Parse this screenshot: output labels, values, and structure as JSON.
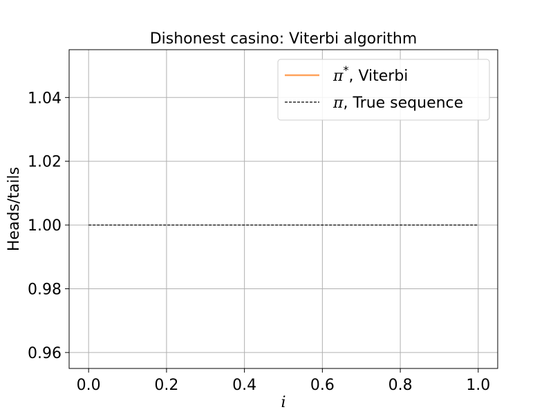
{
  "chart_data": {
    "type": "line",
    "title": "Dishonest casino: Viterbi algorithm",
    "xlabel": "i",
    "ylabel": "Heads/tails",
    "xlim": [
      -0.05,
      1.05
    ],
    "ylim": [
      0.955,
      1.055
    ],
    "xticks": [
      0.0,
      0.2,
      0.4,
      0.6,
      0.8,
      1.0
    ],
    "xtick_labels": [
      "0.0",
      "0.2",
      "0.4",
      "0.6",
      "0.8",
      "1.0"
    ],
    "yticks": [
      0.96,
      0.98,
      1.0,
      1.02,
      1.04
    ],
    "ytick_labels": [
      "0.96",
      "0.98",
      "1.00",
      "1.02",
      "1.04"
    ],
    "grid": true,
    "legend_position": "upper right",
    "series": [
      {
        "name": "π*, Viterbi",
        "legend_symbol": "π",
        "legend_sup": "*",
        "legend_rest": ", Viterbi",
        "color": "#ffa15a",
        "style": "solid",
        "x": [],
        "y": []
      },
      {
        "name": "π, True sequence",
        "legend_symbol": "π",
        "legend_sup": "",
        "legend_rest": ", True sequence",
        "color": "#000000",
        "style": "dashed",
        "x": [
          0.0,
          1.0
        ],
        "y": [
          1.0,
          1.0
        ]
      }
    ]
  }
}
